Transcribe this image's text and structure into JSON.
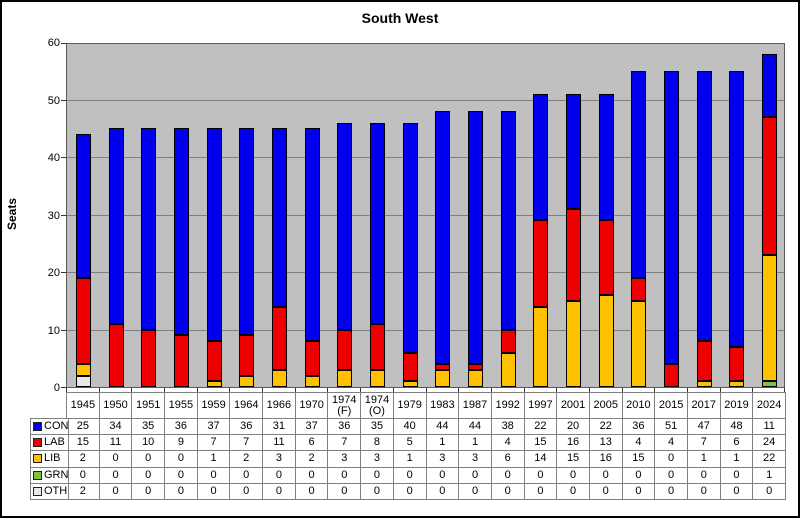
{
  "chart_data": {
    "type": "bar",
    "stacked": true,
    "title": "South West",
    "ylabel": "Seats",
    "ylim": [
      0,
      60
    ],
    "ytick_step": 10,
    "grid": true,
    "legend_position": "table-left",
    "plot_bg": "#C0C0C0",
    "grid_color": "#7F7F7F",
    "categories": [
      "1945",
      "1950",
      "1951",
      "1955",
      "1959",
      "1964",
      "1966",
      "1970",
      "1974 (F)",
      "1974 (O)",
      "1979",
      "1983",
      "1987",
      "1992",
      "1997",
      "2001",
      "2005",
      "2010",
      "2015",
      "2017",
      "2019",
      "2024"
    ],
    "series": [
      {
        "name": "CON",
        "color": "#0000EE",
        "values": [
          25,
          34,
          35,
          36,
          37,
          36,
          31,
          37,
          36,
          35,
          40,
          44,
          44,
          38,
          22,
          20,
          22,
          36,
          51,
          47,
          48,
          11
        ]
      },
      {
        "name": "LAB",
        "color": "#EE0000",
        "values": [
          15,
          11,
          10,
          9,
          7,
          7,
          11,
          6,
          7,
          8,
          5,
          1,
          1,
          4,
          15,
          16,
          13,
          4,
          4,
          7,
          6,
          24
        ]
      },
      {
        "name": "LIB",
        "color": "#FFC000",
        "values": [
          2,
          0,
          0,
          0,
          1,
          2,
          3,
          2,
          3,
          3,
          1,
          3,
          3,
          6,
          14,
          15,
          16,
          15,
          0,
          1,
          1,
          22
        ]
      },
      {
        "name": "GRN",
        "color": "#7DC142",
        "values": [
          0,
          0,
          0,
          0,
          0,
          0,
          0,
          0,
          0,
          0,
          0,
          0,
          0,
          0,
          0,
          0,
          0,
          0,
          0,
          0,
          0,
          1
        ]
      },
      {
        "name": "OTH",
        "color": "#E8E8E8",
        "values": [
          2,
          0,
          0,
          0,
          0,
          0,
          0,
          0,
          0,
          0,
          0,
          0,
          0,
          0,
          0,
          0,
          0,
          0,
          0,
          0,
          0,
          0
        ]
      }
    ]
  }
}
